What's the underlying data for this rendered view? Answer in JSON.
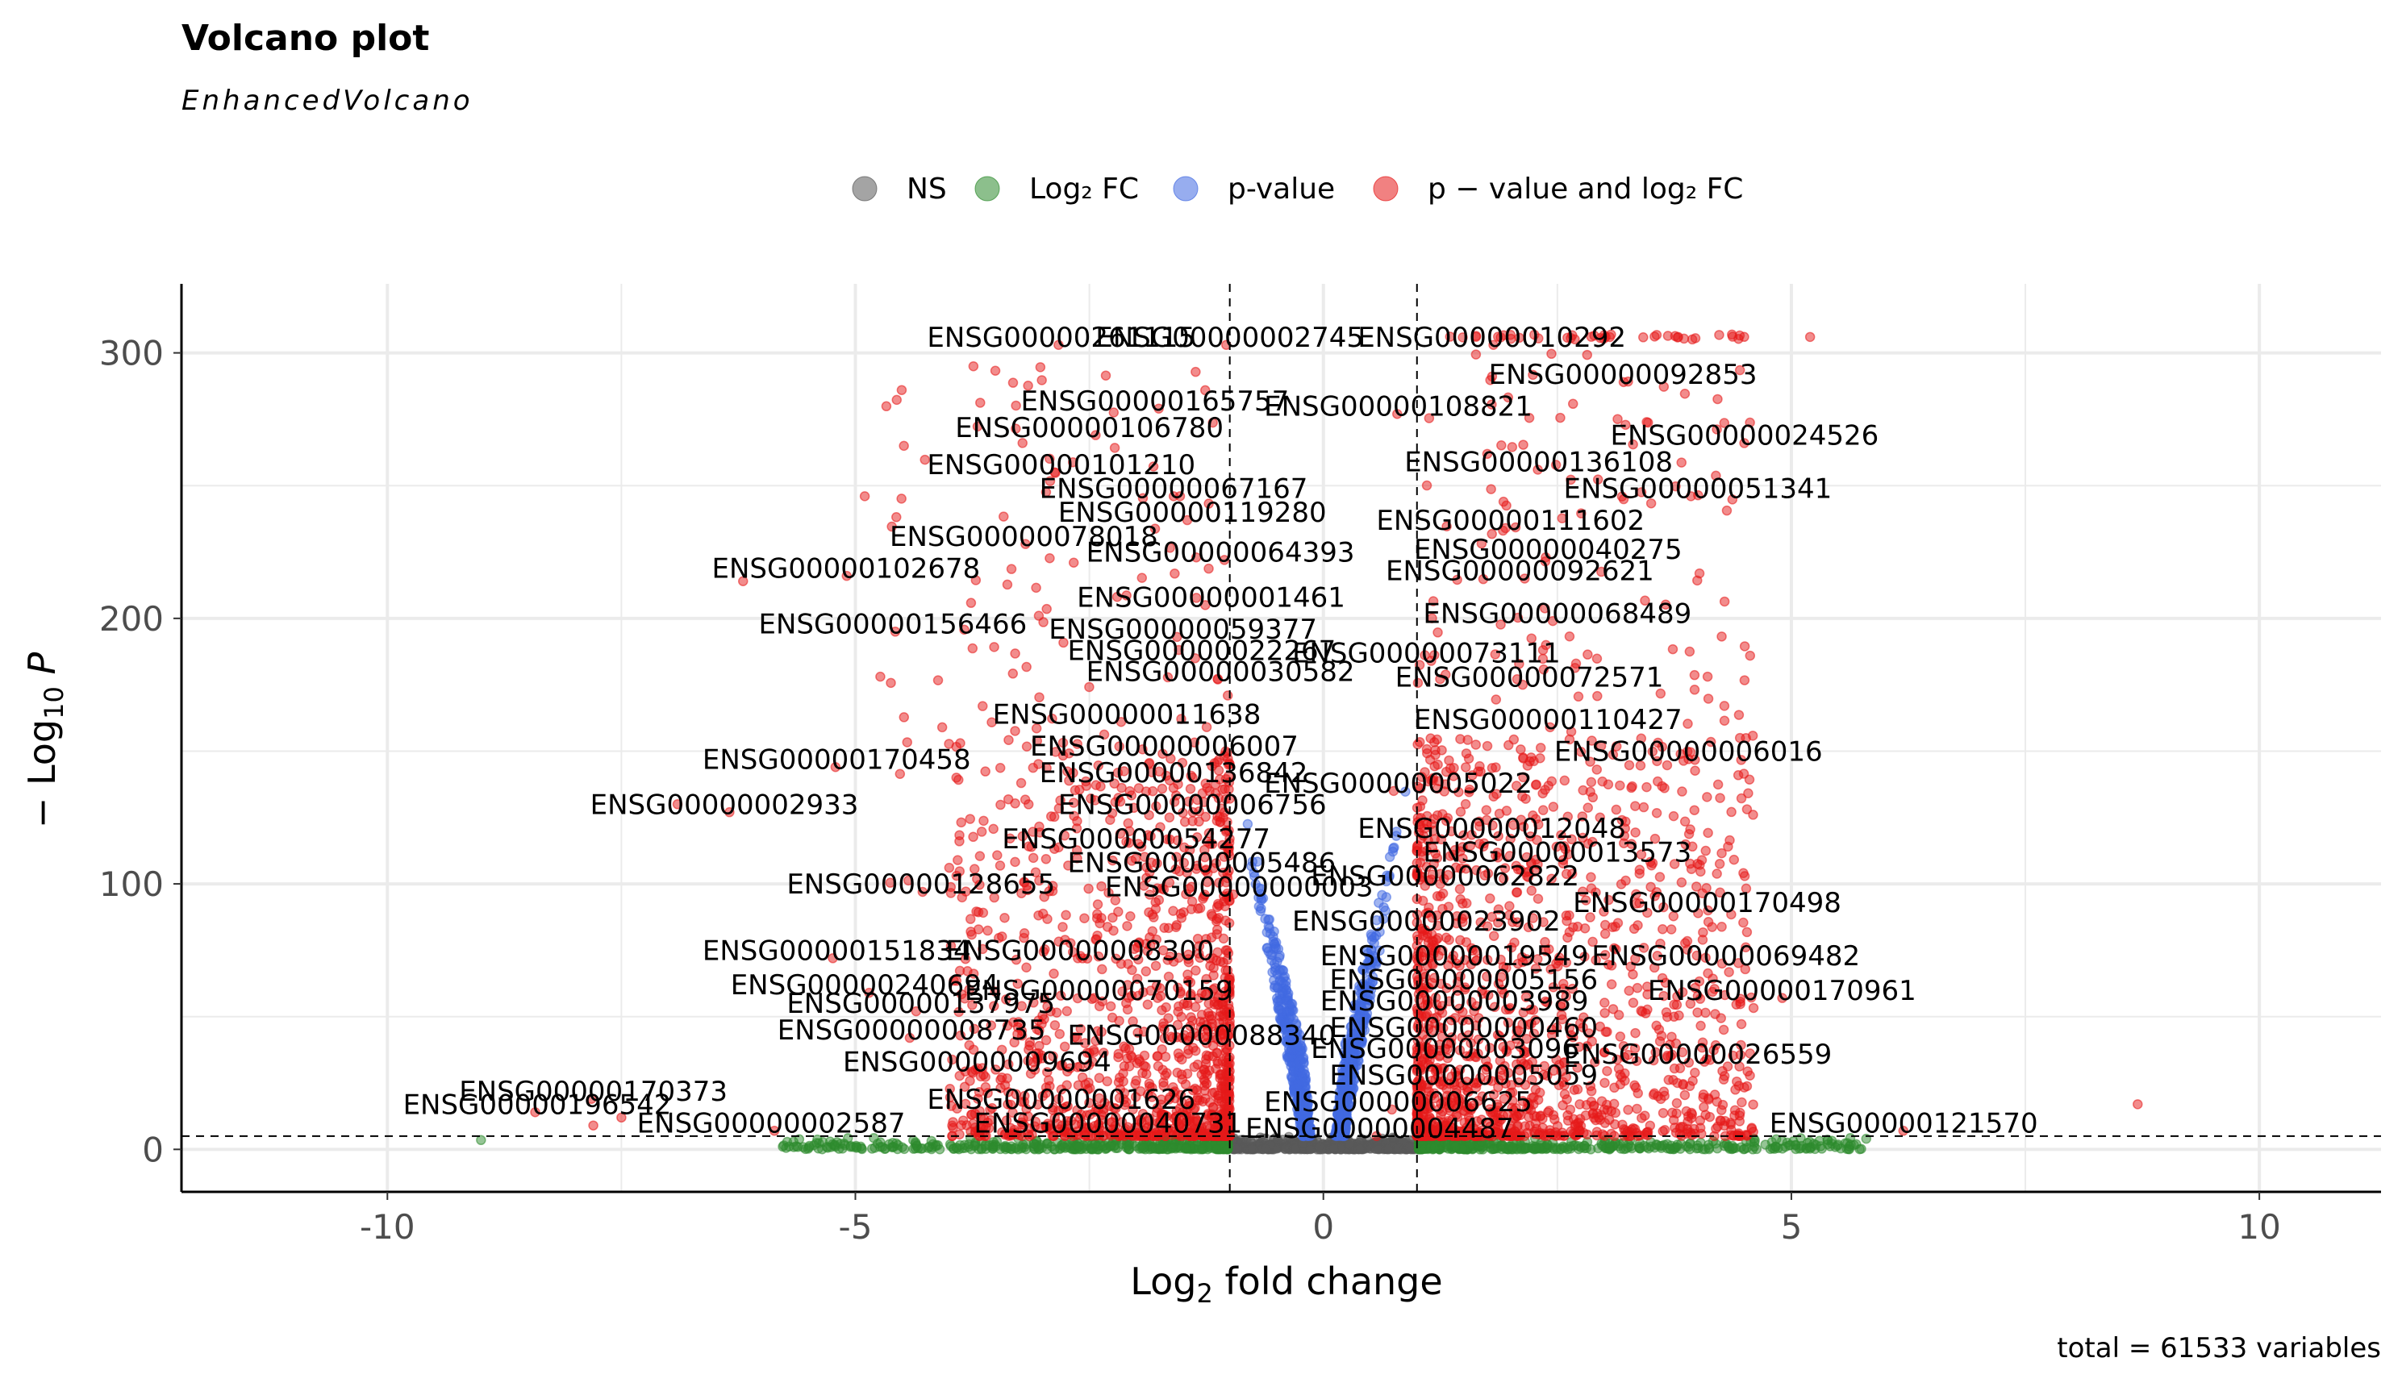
{
  "chart_data": {
    "type": "scatter",
    "title": "Volcano plot",
    "subtitle": "EnhancedVolcano",
    "xlabel": "Log2 fold change",
    "ylabel": "−Log10 P",
    "xlim": [
      -12.2,
      11.3
    ],
    "ylim": [
      -16,
      326
    ],
    "xticks": [
      -10,
      -5,
      0,
      5,
      10
    ],
    "yticks": [
      0,
      100,
      200,
      300
    ],
    "thresholds": {
      "fc": [
        -1,
        1
      ],
      "p_neglog10": 5
    },
    "grid": true,
    "legend_position": "top",
    "legend": [
      {
        "key": "NS",
        "label": "NS",
        "color": "#595959"
      },
      {
        "key": "FC",
        "label": "Log₂ FC",
        "color": "#2e8b2e"
      },
      {
        "key": "P",
        "label": "p-value",
        "color": "#4169e1"
      },
      {
        "key": "FCP",
        "label": "p − value and log₂ FC",
        "color": "#e61919"
      }
    ],
    "caption": "total = 61533 variables",
    "labels": [
      {
        "text": "ENSG00000261115",
        "x": -2.8,
        "y": 306
      },
      {
        "text": "ENSG00000002745",
        "x": -1.0,
        "y": 306
      },
      {
        "text": "ENSG00000010292",
        "x": 1.8,
        "y": 306
      },
      {
        "text": "ENSG00000092853",
        "x": 3.2,
        "y": 292
      },
      {
        "text": "ENSG00000165757",
        "x": -1.8,
        "y": 282
      },
      {
        "text": "ENSG00000108821",
        "x": 0.8,
        "y": 280
      },
      {
        "text": "ENSG00000106780",
        "x": -2.5,
        "y": 272
      },
      {
        "text": "ENSG00000024526",
        "x": 4.5,
        "y": 269
      },
      {
        "text": "ENSG00000101210",
        "x": -2.8,
        "y": 258
      },
      {
        "text": "ENSG00000136108",
        "x": 2.3,
        "y": 259
      },
      {
        "text": "ENSG00000067167",
        "x": -1.6,
        "y": 249
      },
      {
        "text": "ENSG00000051341",
        "x": 4.0,
        "y": 249
      },
      {
        "text": "ENSG00000119280",
        "x": -1.4,
        "y": 240
      },
      {
        "text": "ENSG00000111602",
        "x": 2.0,
        "y": 237
      },
      {
        "text": "ENSG00000078018",
        "x": -3.2,
        "y": 231
      },
      {
        "text": "ENSG00000040275",
        "x": 2.4,
        "y": 226
      },
      {
        "text": "ENSG00000064393",
        "x": -1.1,
        "y": 225
      },
      {
        "text": "ENSG00000102678",
        "x": -5.1,
        "y": 219
      },
      {
        "text": "ENSG00000092621",
        "x": 2.1,
        "y": 218
      },
      {
        "text": "ENSG00000001461",
        "x": -1.2,
        "y": 208
      },
      {
        "text": "ENSG00000068489",
        "x": 2.5,
        "y": 202
      },
      {
        "text": "ENSG00000059377",
        "x": -1.5,
        "y": 196
      },
      {
        "text": "ENSG00000156466",
        "x": -4.6,
        "y": 198
      },
      {
        "text": "ENSG00000022267",
        "x": -1.3,
        "y": 188
      },
      {
        "text": "ENSG00000073111",
        "x": 1.1,
        "y": 187
      },
      {
        "text": "ENSG00000030582",
        "x": -1.1,
        "y": 180
      },
      {
        "text": "ENSG00000072571",
        "x": 2.2,
        "y": 178
      },
      {
        "text": "ENSG00000011638",
        "x": -2.1,
        "y": 164
      },
      {
        "text": "ENSG00000110427",
        "x": 2.4,
        "y": 162
      },
      {
        "text": "ENSG00000006007",
        "x": -1.7,
        "y": 152
      },
      {
        "text": "ENSG00000006016",
        "x": 3.9,
        "y": 150
      },
      {
        "text": "ENSG00000170458",
        "x": -5.2,
        "y": 147
      },
      {
        "text": "ENSG00000136842",
        "x": -1.6,
        "y": 142
      },
      {
        "text": "ENSG00000005022",
        "x": 0.8,
        "y": 138
      },
      {
        "text": "ENSG00000002933",
        "x": -6.4,
        "y": 130
      },
      {
        "text": "ENSG00000006756",
        "x": -1.4,
        "y": 130
      },
      {
        "text": "ENSG00000012048",
        "x": 1.8,
        "y": 121
      },
      {
        "text": "ENSG00000054277",
        "x": -2.0,
        "y": 117
      },
      {
        "text": "ENSG00000013573",
        "x": 2.5,
        "y": 112
      },
      {
        "text": "ENSG00000005486",
        "x": -1.3,
        "y": 108
      },
      {
        "text": "ENSG00000062822",
        "x": 1.3,
        "y": 103
      },
      {
        "text": "ENSG00000000003",
        "x": -0.9,
        "y": 99
      },
      {
        "text": "ENSG00000170498",
        "x": 4.1,
        "y": 93
      },
      {
        "text": "ENSG00000128655",
        "x": -4.3,
        "y": 100
      },
      {
        "text": "ENSG00000023902",
        "x": 1.1,
        "y": 86
      },
      {
        "text": "ENSG00000151834",
        "x": -5.2,
        "y": 75
      },
      {
        "text": "ENSG00000008300",
        "x": -2.6,
        "y": 75
      },
      {
        "text": "ENSG00000019549",
        "x": 1.4,
        "y": 73
      },
      {
        "text": "ENSG00000069482",
        "x": 4.3,
        "y": 73
      },
      {
        "text": "ENSG00000005156",
        "x": 1.5,
        "y": 64
      },
      {
        "text": "ENSG00000240694",
        "x": -4.9,
        "y": 62
      },
      {
        "text": "ENSG00000070159",
        "x": -2.4,
        "y": 60
      },
      {
        "text": "ENSG00000170961",
        "x": 4.9,
        "y": 60
      },
      {
        "text": "ENSG00000003989",
        "x": 1.4,
        "y": 56
      },
      {
        "text": "ENSG00000137975",
        "x": -4.3,
        "y": 55
      },
      {
        "text": "ENSG00000000460",
        "x": 1.5,
        "y": 46
      },
      {
        "text": "ENSG00000008735",
        "x": -4.4,
        "y": 45
      },
      {
        "text": "ENSG00000088340",
        "x": -1.3,
        "y": 43
      },
      {
        "text": "ENSG00000003096",
        "x": 1.3,
        "y": 38
      },
      {
        "text": "ENSG00000026559",
        "x": 4.0,
        "y": 36
      },
      {
        "text": "ENSG00000009694",
        "x": -3.7,
        "y": 33
      },
      {
        "text": "ENSG00000005059",
        "x": 1.5,
        "y": 28
      },
      {
        "text": "ENSG00000170373",
        "x": -7.8,
        "y": 22
      },
      {
        "text": "ENSG00000001626",
        "x": -2.8,
        "y": 19
      },
      {
        "text": "ENSG00000006625",
        "x": 0.8,
        "y": 18
      },
      {
        "text": "ENSG00000196542",
        "x": -8.4,
        "y": 17
      },
      {
        "text": "ENSG00000121570",
        "x": 6.2,
        "y": 10
      },
      {
        "text": "ENSG00000002587",
        "x": -5.9,
        "y": 10
      },
      {
        "text": "ENSG00000040731",
        "x": -2.3,
        "y": 10
      },
      {
        "text": "ENSG00000004487",
        "x": 0.6,
        "y": 8
      }
    ]
  }
}
